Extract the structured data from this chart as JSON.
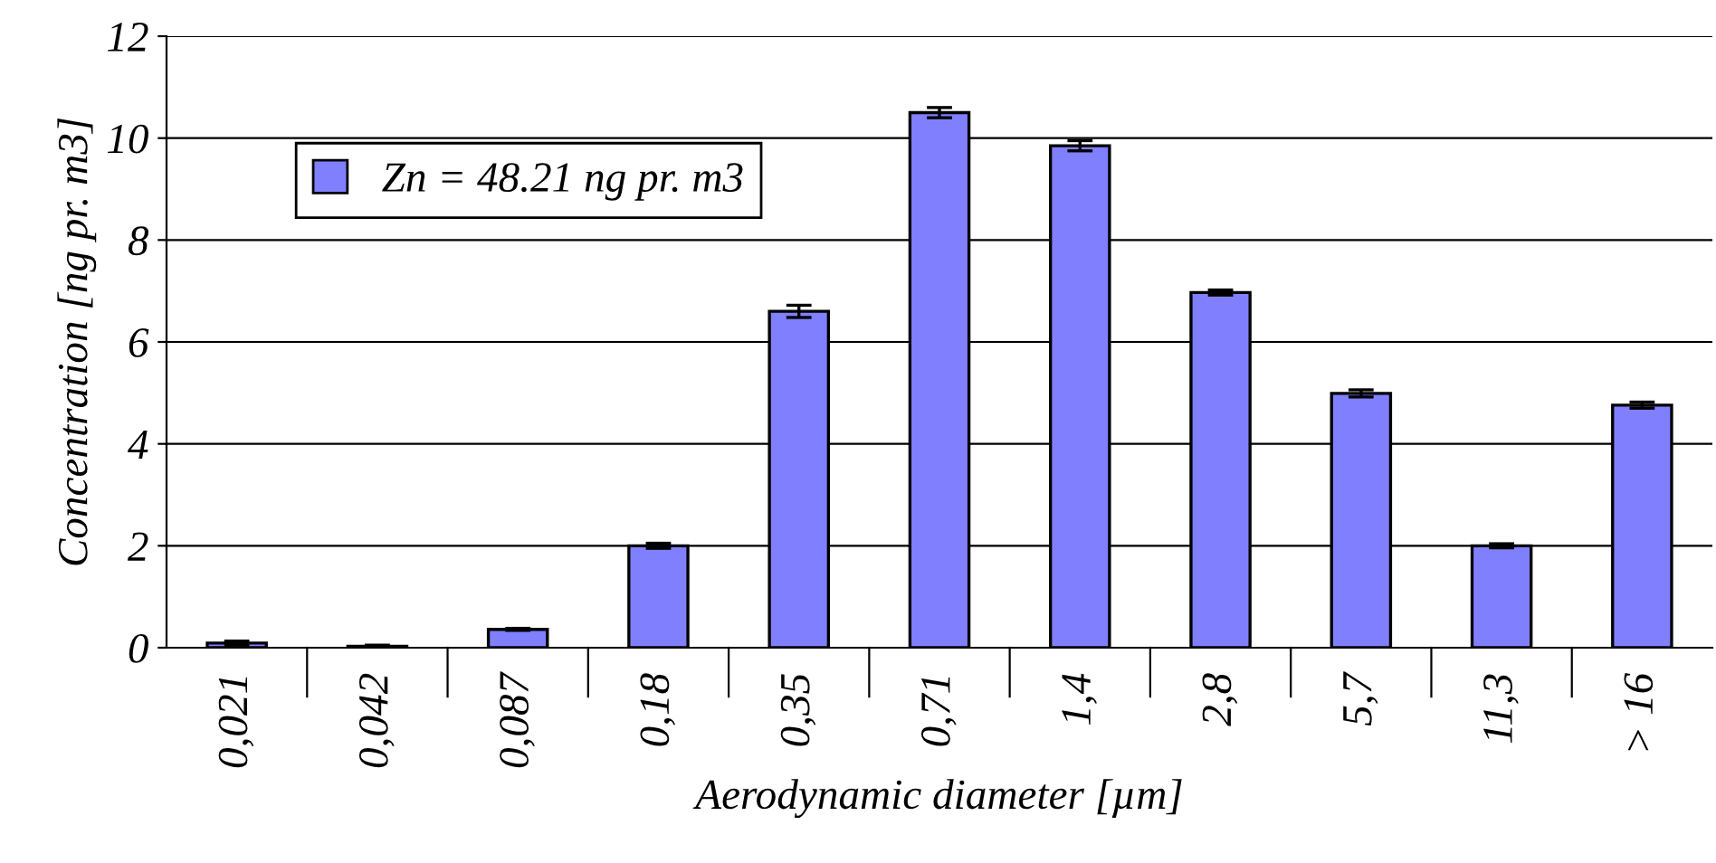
{
  "chart_data": {
    "type": "bar",
    "xlabel": "Aerodynamic diameter [µm]",
    "ylabel": "Concentration [ng pr. m3]",
    "categories": [
      "0,021",
      "0,042",
      "0,087",
      "0,18",
      "0,35",
      "0,71",
      "1,4",
      "2,8",
      "5,7",
      "11,3",
      "> 16"
    ],
    "series": [
      {
        "name": "Zn = 48.21 ng pr. m3",
        "color": "#8080ff",
        "values": [
          0.09,
          0.03,
          0.36,
          2.0,
          6.6,
          10.5,
          9.85,
          6.97,
          4.99,
          2.0,
          4.76
        ],
        "errors": [
          0.04,
          0.02,
          0.02,
          0.05,
          0.12,
          0.1,
          0.1,
          0.05,
          0.07,
          0.04,
          0.06
        ]
      }
    ],
    "ylim": [
      0,
      12
    ],
    "yticks": [
      0,
      2,
      4,
      6,
      8,
      10,
      12
    ],
    "grid": "y",
    "legend": "top left"
  }
}
